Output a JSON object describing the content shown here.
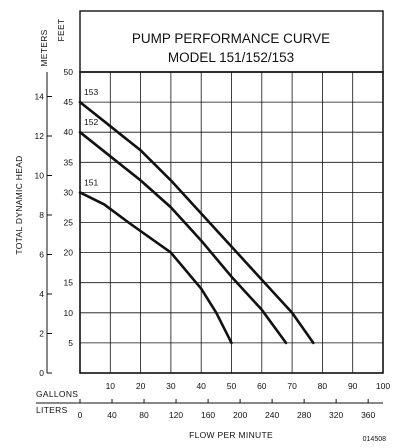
{
  "chart_data": {
    "type": "line",
    "title": "PUMP PERFORMANCE CURVE",
    "subtitle": "MODEL 151/152/153",
    "xlabel": "FLOW PER MINUTE",
    "ylabel": "TOTAL DYNAMIC HEAD",
    "x_units": {
      "primary": "GALLONS",
      "secondary": "LITERS"
    },
    "y_units": {
      "primary": "FEET",
      "secondary": "METERS"
    },
    "xlim": [
      0,
      100
    ],
    "ylim": [
      0,
      50
    ],
    "grid": true,
    "x_ticks_gallons": [
      "10",
      "20",
      "30",
      "40",
      "50",
      "60",
      "70",
      "80",
      "90",
      "100"
    ],
    "x_ticks_liters": [
      "0",
      "40",
      "80",
      "120",
      "160",
      "200",
      "240",
      "280",
      "320",
      "360"
    ],
    "y_ticks_feet": [
      "5",
      "10",
      "15",
      "20",
      "25",
      "30",
      "35",
      "40",
      "45",
      "50"
    ],
    "y_ticks_meters": [
      "0",
      "2",
      "4",
      "6",
      "8",
      "10",
      "12",
      "14"
    ],
    "series": [
      {
        "name": "153",
        "x": [
          0,
          10,
          20,
          30,
          40,
          50,
          60,
          70,
          77
        ],
        "y": [
          45,
          41,
          37,
          32,
          26.5,
          21,
          15.5,
          10,
          5
        ]
      },
      {
        "name": "152",
        "x": [
          0,
          10,
          20,
          30,
          40,
          50,
          60,
          68
        ],
        "y": [
          40,
          36,
          32,
          27.5,
          22,
          16,
          10.5,
          5
        ]
      },
      {
        "name": "151",
        "x": [
          0,
          8,
          16,
          30,
          40,
          45,
          50
        ],
        "y": [
          30,
          28,
          25,
          20,
          14,
          10,
          5
        ]
      }
    ],
    "code": "014508"
  }
}
